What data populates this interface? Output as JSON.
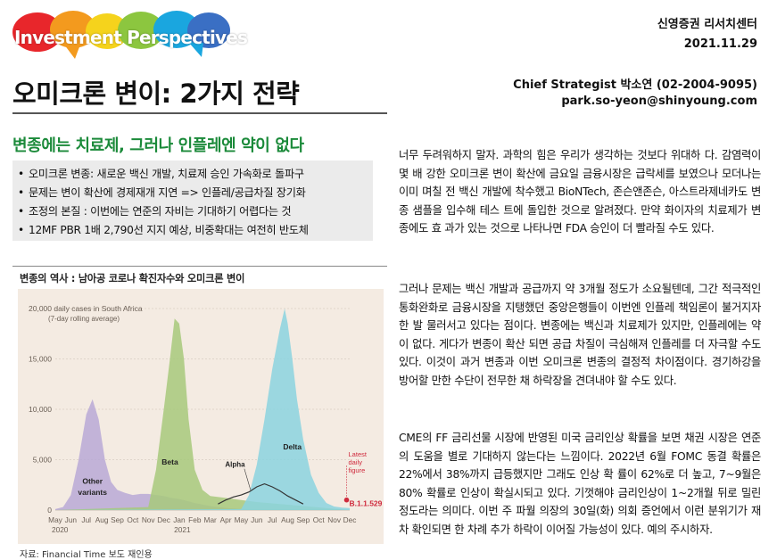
{
  "header": {
    "logo_text": "Investment Perspectives",
    "company": "신영증권 리서치센터",
    "date": "2021.11.29",
    "author": "Chief Strategist 박소연 (02-2004-9095)",
    "email": "park.so-yeon@shinyoung.com",
    "logo_colors": [
      "#e8262b",
      "#f39a1e",
      "#f5d31c",
      "#8cc63f",
      "#1aa6df",
      "#3a6fc4"
    ]
  },
  "title": "오미크론 변이: 2가지 전략",
  "subtitle": "변종에는 치료제, 그러나 인플레엔 약이 없다",
  "bullets": [
    "오미크론 변종: 새로운 백신 개발, 치료제 승인 가속화로 돌파구",
    "문제는 변이 확산에 경제재개 지연 => 인플레/공급차질 장기화",
    "조정의 본질 : 이번에는 연준의 자비는 기대하기 어렵다는 것",
    "12MF PBR 1배 2,790선 지지 예상, 비중확대는 여전히 반도체"
  ],
  "chart_caption": "변종의 역사 : 남아공 코로나 확진자수와 오미크론 변이",
  "source": "자료: Financial Time 보도 재인용",
  "chart_data": {
    "type": "area",
    "title": "20,000 daily cases in South Africa",
    "subtitle": "(7-day rolling average)",
    "yticks": [
      0,
      5000,
      10000,
      15000,
      20000
    ],
    "ytick_labels": [
      "0",
      "5,000",
      "10,000",
      "15,000",
      "20,000"
    ],
    "ylim": [
      0,
      20000
    ],
    "xlim": [
      0,
      19
    ],
    "month_labels": [
      "May",
      "Jun",
      "Jul",
      "Aug",
      "Sep",
      "Oct",
      "Nov",
      "Dec",
      "Jan",
      "Feb",
      "Mar",
      "Apr",
      "May",
      "Jun",
      "Jul",
      "Aug",
      "Sep",
      "Oct",
      "Nov",
      "Dec"
    ],
    "year_labels": [
      {
        "label": "2020",
        "x": 0.3
      },
      {
        "label": "2021",
        "x": 8.2
      }
    ],
    "series": [
      {
        "name": "Other variants",
        "color": "#b8a9d6",
        "x": [
          0,
          0.5,
          1,
          1.5,
          2,
          2.4,
          2.8,
          3.2,
          3.6,
          4,
          4.5,
          5,
          5.5,
          6,
          6.5,
          7,
          7.5,
          8,
          8.5,
          9,
          10,
          11,
          12,
          19
        ],
        "values": [
          100,
          300,
          1500,
          5000,
          9500,
          11000,
          9000,
          5000,
          2800,
          2000,
          1700,
          1500,
          1600,
          1600,
          1500,
          1400,
          1200,
          1100,
          900,
          700,
          400,
          200,
          100,
          0
        ]
      },
      {
        "name": "Beta",
        "color": "#a7c97b",
        "x": [
          0,
          6,
          6.5,
          7,
          7.4,
          7.7,
          8,
          8.3,
          8.6,
          9,
          9.5,
          10,
          11,
          12,
          13,
          19
        ],
        "values": [
          0,
          300,
          4000,
          10000,
          15000,
          19000,
          18500,
          15000,
          9000,
          4000,
          2000,
          1400,
          1200,
          1000,
          800,
          0
        ]
      },
      {
        "name": "Delta",
        "color": "#8bd3df",
        "x": [
          0,
          12,
          12.5,
          13,
          13.5,
          14,
          14.5,
          14.8,
          15,
          15.3,
          15.6,
          16,
          16.5,
          17,
          17.5,
          18,
          18.5,
          19
        ],
        "values": [
          0,
          100,
          1500,
          4500,
          9000,
          14000,
          18000,
          20000,
          18500,
          15000,
          11000,
          7000,
          3500,
          1700,
          700,
          350,
          250,
          200
        ]
      },
      {
        "name": "Alpha",
        "color": "#333333",
        "x": [
          10.5,
          11,
          11.5,
          12,
          12.5,
          13,
          13.5,
          14,
          14.5,
          15,
          15.5,
          16
        ],
        "values": [
          600,
          1000,
          1300,
          1500,
          1800,
          2300,
          2600,
          2300,
          1900,
          1400,
          1000,
          600
        ]
      }
    ],
    "labels": [
      "Other variants",
      "Beta",
      "Alpha",
      "Delta"
    ],
    "annotation": {
      "label": "Latest daily figure",
      "value": 1000,
      "x": 18.8,
      "color": "#cf2a3d"
    },
    "omicron_label": "B.1.1.529",
    "label_colors": {
      "annotation": "#cf2a3d",
      "omicron": "#cf2a3d"
    }
  },
  "paragraphs": [
    [
      "너무 두려워하지 말자. 과학의 힘은 우리가 생각하는 것보다 위대하",
      "다. 감염력이 몇 배 강한 오미크론 변이 확산에 금요일 금융시장은",
      "급락세를 보였으나 모더나는 이미 며칠 전 백신 개발에 착수했고",
      "BioNTech, 존슨앤존슨, 아스트라제네카도 변종 샘플을 입수해 테스",
      "트에 돌입한 것으로 알려졌다. 만약 화이자의 치료제가 변종에도 효",
      "과가 있는 것으로 나타나면 FDA 승인이 더 빨라질 수도 있다."
    ],
    [
      "그러나 문제는 백신 개발과 공급까지 약 3개월 정도가 소요될텐데,",
      "그간 적극적인 통화완화로 금융시장을 지탱했던 중앙은행들이 이번엔",
      "인플레 책임론이 불거지자 한 발 물러서고 있다는 점이다. 변종에는",
      "백신과 치료제가 있지만, 인플레에는 약이 없다. 게다가 변종이 확산",
      "되면 공급 차질이 극심해져 인플레를 더 자극할 수도 있다. 이것이",
      "과거 변종과 이번 오미크론 변종의 결정적 차이점이다. 경기하강을",
      "방어할 만한 수단이 전무한 채 하락장을 견뎌내야 할 수도 있다."
    ],
    [
      "CME의 FF 금리선물 시장에 반영된 미국 금리인상 확률을 보면 채권",
      "시장은 연준의 도움을 별로 기대하지 않는다는 느낌이다. 2022년 6월",
      "FOMC 동결 확률은 22%에서 38%까지 급등했지만 그래도 인상 확",
      "률이 62%로 더 높고, 7~9월은 80% 확률로 인상이 확실시되고 있다.",
      "기껏해야 금리인상이 1~2개월 뒤로 밀린 정도라는 의미다. 이번 주",
      "파월 의장의 30일(화) 의회 증언에서 이런 분위기가 재차 확인되면",
      "한 차례 추가 하락이 이어질 가능성이 있다. 예의 주시하자."
    ]
  ]
}
